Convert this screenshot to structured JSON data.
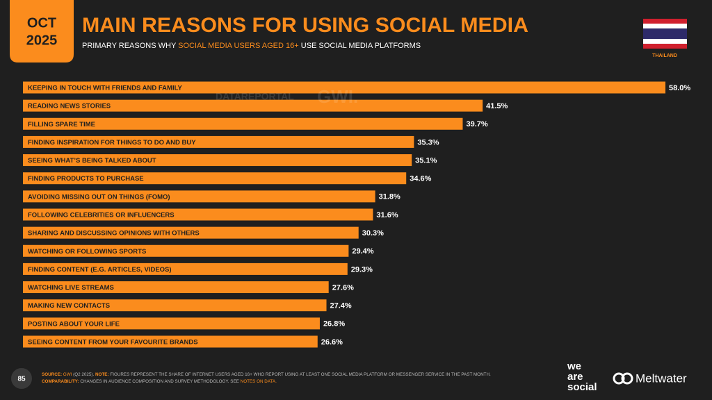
{
  "header": {
    "month": "OCT",
    "year": "2025",
    "title": "MAIN REASONS FOR USING SOCIAL MEDIA",
    "subtitle_start": "PRIMARY REASONS WHY",
    "subtitle_highlight": "SOCIAL MEDIA USERS AGED 16+",
    "subtitle_end": "USE SOCIAL MEDIA PLATFORMS",
    "country": "THAILAND"
  },
  "watermark": {
    "left": "DATAREPORTAL",
    "right": "GWI."
  },
  "chart_data": {
    "type": "bar",
    "orientation": "horizontal",
    "color": "#fb8c1d",
    "categories": [
      "KEEPING IN TOUCH WITH FRIENDS AND FAMILY",
      "READING NEWS STORIES",
      "FILLING SPARE TIME",
      "FINDING INSPIRATION FOR THINGS TO DO AND BUY",
      "SEEING WHAT’S BEING TALKED ABOUT",
      "FINDING PRODUCTS TO PURCHASE",
      "AVOIDING MISSING OUT ON THINGS (FOMO)",
      "FOLLOWING CELEBRITIES OR INFLUENCERS",
      "SHARING AND DISCUSSING OPINIONS WITH OTHERS",
      "WATCHING OR FOLLOWING SPORTS",
      "FINDING CONTENT (E.G. ARTICLES, VIDEOS)",
      "WATCHING LIVE STREAMS",
      "MAKING NEW CONTACTS",
      "POSTING ABOUT YOUR LIFE",
      "SEEING CONTENT FROM YOUR FAVOURITE BRANDS"
    ],
    "values": [
      58.0,
      41.5,
      39.7,
      35.3,
      35.1,
      34.6,
      31.8,
      31.6,
      30.3,
      29.4,
      29.3,
      27.6,
      27.4,
      26.8,
      26.6
    ],
    "value_labels": [
      "58.0%",
      "41.5%",
      "39.7%",
      "35.3%",
      "35.1%",
      "34.6%",
      "31.8%",
      "31.6%",
      "30.3%",
      "29.4%",
      "29.3%",
      "27.6%",
      "27.4%",
      "26.8%",
      "26.6%"
    ]
  },
  "footer": {
    "page_number": "85",
    "source_label": "SOURCE:",
    "source": "GWI",
    "source_date": "(Q2 2025).",
    "note_label": "NOTE:",
    "note": "FIGURES REPRESENT THE SHARE OF INTERNET USERS AGED 16+ WHO REPORT USING AT LEAST ONE SOCIAL MEDIA PLATFORM OR MESSENGER SERVICE IN THE PAST MONTH.",
    "comparability_label": "COMPARABILITY:",
    "comparability": "CHANGES IN AUDIENCE COMPOSITION AND SURVEY METHODOLOGY. SEE",
    "notes_link": "NOTES ON DATA.",
    "logo_we": "we",
    "logo_are": "are",
    "logo_social": "social",
    "logo_meltwater": "Meltwater"
  }
}
